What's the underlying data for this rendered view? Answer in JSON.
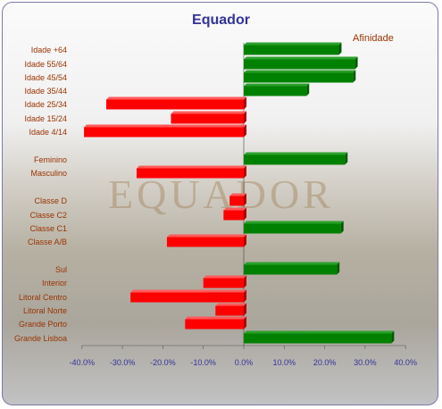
{
  "chart_data": {
    "type": "bar",
    "orientation": "horizontal",
    "title": "Equador",
    "categories": [
      "Idade +64",
      "Idade 55/64",
      "Idade 45/54",
      "Idade 35/44",
      "Idade 25/34",
      "Idade 15/24",
      "Idade 4/14",
      "Feminino",
      "Masculino",
      "Classe D",
      "Classe C2",
      "Classe C1",
      "Classe A/B",
      "Sul",
      "Interior",
      "Litoral Centro",
      "Litoral Norte",
      "Grande Porto",
      "Grande Lisboa"
    ],
    "series": [
      {
        "name": "Afinidade",
        "values": [
          23.5,
          27.5,
          27.0,
          15.5,
          -34.0,
          -18.0,
          -39.5,
          25.0,
          -26.5,
          -3.5,
          -5.0,
          24.0,
          -19.0,
          23.0,
          -10.0,
          -28.0,
          -7.0,
          -14.5,
          36.5
        ]
      }
    ],
    "x_ticks": [
      "-40.0%",
      "-30.0%",
      "-20.0%",
      "-10.0%",
      "0.0%",
      "10.0%",
      "20.0%",
      "30.0%",
      "40.0%"
    ],
    "xlim": [
      -40,
      40
    ],
    "positive_color": "#008000",
    "negative_color": "#ff0000",
    "grid": false,
    "legend_placement": "top-right"
  }
}
